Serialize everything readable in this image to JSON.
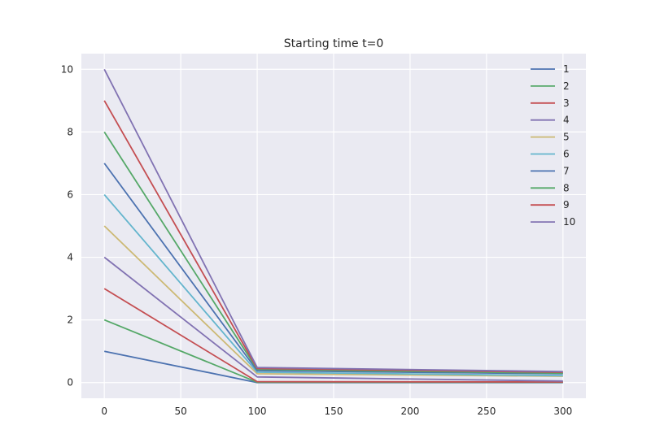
{
  "chart_data": {
    "type": "line",
    "title": "Starting time t=0",
    "xlabel": "",
    "ylabel": "",
    "xlim": [
      -15,
      315
    ],
    "ylim": [
      -0.5,
      10.5
    ],
    "x_ticks": [
      0,
      50,
      100,
      150,
      200,
      250,
      300
    ],
    "y_ticks": [
      0,
      2,
      4,
      6,
      8,
      10
    ],
    "grid": true,
    "legend_position": "top-right",
    "x": [
      0,
      100,
      300
    ],
    "series": [
      {
        "name": "1",
        "color": "#4c72b0",
        "values": [
          1,
          0.0,
          0.0
        ]
      },
      {
        "name": "2",
        "color": "#55a868",
        "values": [
          2,
          0.01,
          0.01
        ]
      },
      {
        "name": "3",
        "color": "#c44e52",
        "values": [
          3,
          0.03,
          0.02
        ]
      },
      {
        "name": "4",
        "color": "#8172b2",
        "values": [
          4,
          0.18,
          0.05
        ]
      },
      {
        "name": "5",
        "color": "#ccb974",
        "values": [
          5,
          0.28,
          0.2
        ]
      },
      {
        "name": "6",
        "color": "#64b5cd",
        "values": [
          6,
          0.33,
          0.22
        ]
      },
      {
        "name": "7",
        "color": "#4c72b0",
        "values": [
          7,
          0.38,
          0.28
        ]
      },
      {
        "name": "8",
        "color": "#55a868",
        "values": [
          8,
          0.42,
          0.3
        ]
      },
      {
        "name": "9",
        "color": "#c44e52",
        "values": [
          9,
          0.45,
          0.33
        ]
      },
      {
        "name": "10",
        "color": "#8172b2",
        "values": [
          10,
          0.48,
          0.35
        ]
      }
    ]
  }
}
